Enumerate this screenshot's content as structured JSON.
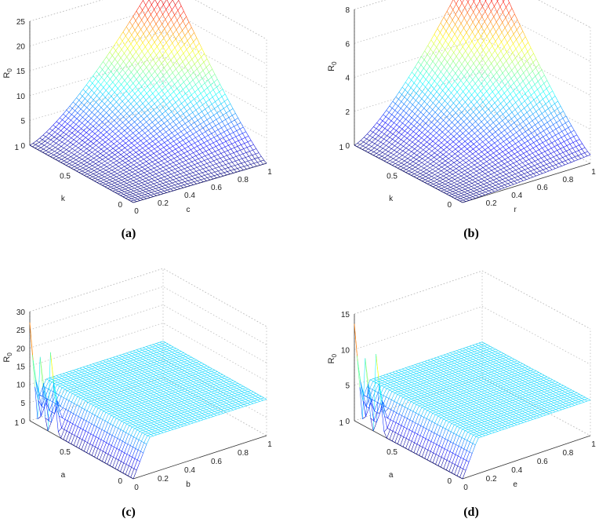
{
  "chart_data": [
    {
      "panel": "(a)",
      "type": "surface",
      "xlabel": "c",
      "ylabel": "k",
      "zlabel": "R0",
      "xlim": [
        0,
        1
      ],
      "ylim": [
        0,
        1
      ],
      "zlim": [
        0,
        25
      ],
      "xticks": [
        "0",
        "0.2",
        "0.4",
        "0.6",
        "0.8",
        "1"
      ],
      "yticks": [
        "0",
        "0.5",
        "1"
      ],
      "zticks": [
        "0",
        "5",
        "10",
        "15",
        "20",
        "25"
      ],
      "corner_values": {
        "c0_k0": 0,
        "c1_k0": 0,
        "c0_k1": 0,
        "c1_k1": 28
      },
      "colormap": "jet",
      "grid": true
    },
    {
      "panel": "(b)",
      "type": "surface",
      "xlabel": "r",
      "ylabel": "k",
      "zlabel": "R0",
      "xlim": [
        0,
        1
      ],
      "ylim": [
        0,
        1
      ],
      "zlim": [
        0,
        8
      ],
      "xticks": [
        "0.2",
        "0.4",
        "0.6",
        "0.8",
        "1"
      ],
      "yticks": [
        "0",
        "0.5",
        "1"
      ],
      "zticks": [
        "0",
        "2",
        "4",
        "6",
        "8"
      ],
      "corner_values": {
        "r0_k0": 0,
        "r1_k0": 0.5,
        "r0_k1": 0,
        "r1_k1": 9.6
      },
      "colormap": "jet",
      "grid": true
    },
    {
      "panel": "(c)",
      "type": "surface",
      "xlabel": "b",
      "ylabel": "a",
      "zlabel": "R0",
      "xlim": [
        0,
        1
      ],
      "ylim": [
        0,
        1
      ],
      "zlim": [
        0,
        30
      ],
      "xticks": [
        "0",
        "0.2",
        "0.4",
        "0.6",
        "0.8",
        "1"
      ],
      "yticks": [
        "0",
        "0.5",
        "1"
      ],
      "zticks": [
        "0",
        "5",
        "10",
        "15",
        "20",
        "25",
        "30"
      ],
      "plateau_value": 10,
      "spike_rows_a": [
        1.0,
        0.92,
        0.8
      ],
      "spike_peaks": [
        27,
        25.5,
        22
      ],
      "colormap": "jet",
      "grid": true
    },
    {
      "panel": "(d)",
      "type": "surface",
      "xlabel": "e",
      "ylabel": "a",
      "zlabel": "R0",
      "xlim": [
        0,
        1
      ],
      "ylim": [
        0,
        1
      ],
      "zlim": [
        0,
        15
      ],
      "xticks": [
        "0",
        "0.2",
        "0.4",
        "0.6",
        "0.8",
        "1"
      ],
      "yticks": [
        "0",
        "0.5",
        "1"
      ],
      "zticks": [
        "0",
        "5",
        "10",
        "15"
      ],
      "plateau_value": 5,
      "spike_rows_a": [
        1.0,
        0.92,
        0.8
      ],
      "spike_peaks": [
        13.6,
        12.8,
        11.0
      ],
      "colormap": "jet",
      "grid": true
    }
  ],
  "zlabel_main": "R",
  "zlabel_sub": "0"
}
